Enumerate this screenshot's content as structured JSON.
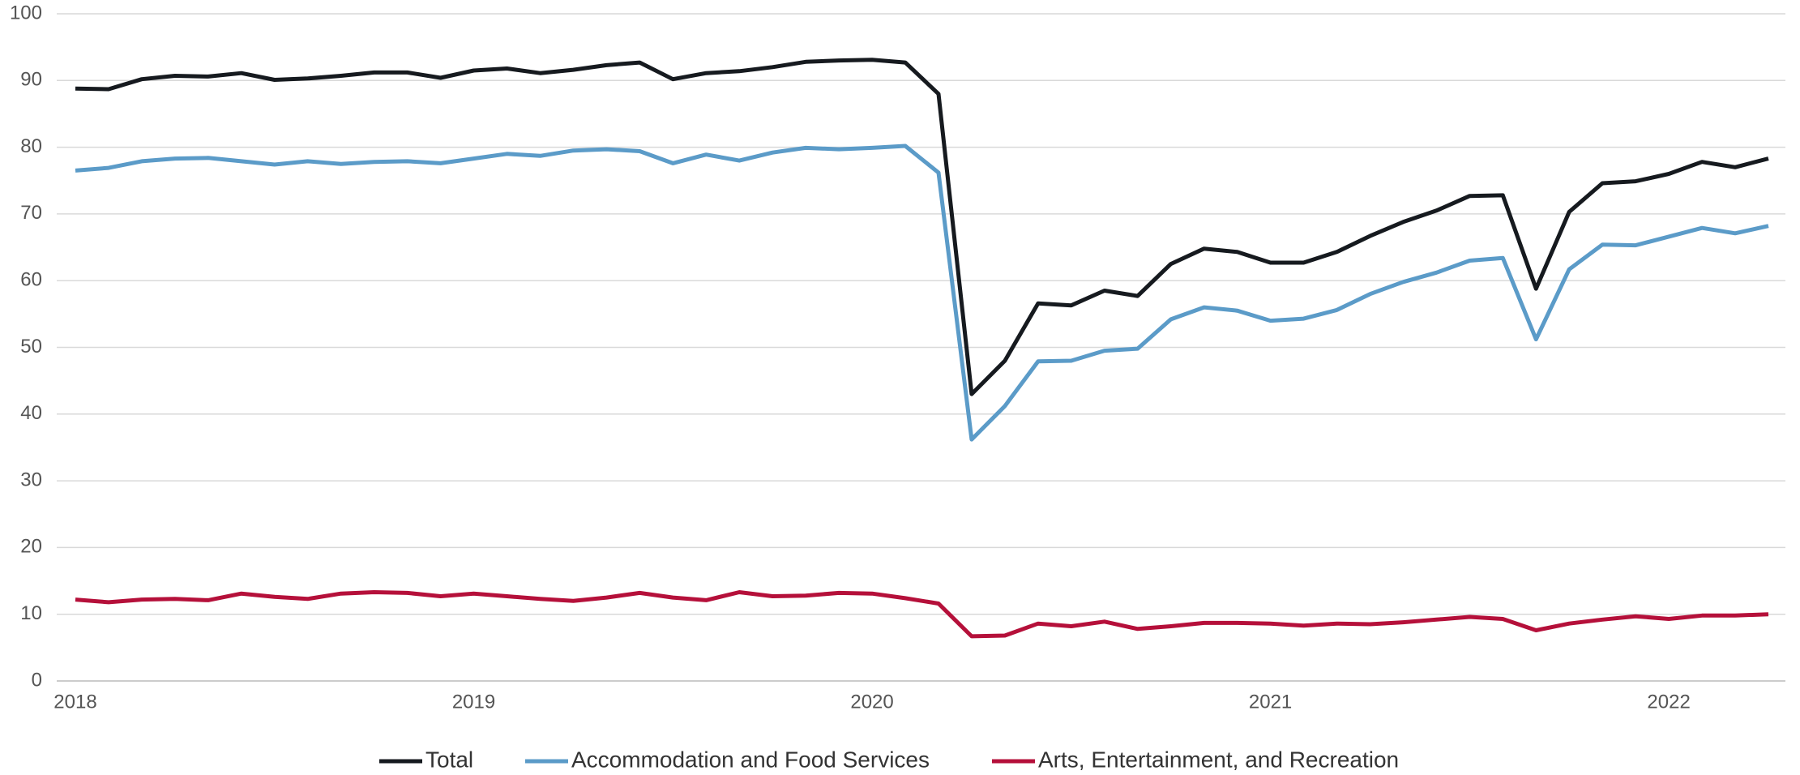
{
  "chart_data": {
    "type": "line",
    "categories": [
      "2018",
      null,
      null,
      null,
      null,
      null,
      null,
      null,
      null,
      null,
      null,
      null,
      "2019",
      null,
      null,
      null,
      null,
      null,
      null,
      null,
      null,
      null,
      null,
      null,
      "2020",
      null,
      null,
      null,
      null,
      null,
      null,
      null,
      null,
      null,
      null,
      null,
      "2021",
      null,
      null,
      null,
      null,
      null,
      null,
      null,
      null,
      null,
      null,
      null,
      "2022",
      null,
      null,
      null
    ],
    "ylim": [
      0,
      100
    ],
    "yticks": [
      0,
      10,
      20,
      30,
      40,
      50,
      60,
      70,
      80,
      90,
      100
    ],
    "grid": true,
    "legend": "bottom",
    "series": [
      {
        "name": "Total",
        "color": "#161a1f",
        "values": [
          88.8,
          88.7,
          90.2,
          90.7,
          90.6,
          91.1,
          90.1,
          90.3,
          90.7,
          91.2,
          91.2,
          90.4,
          91.5,
          91.8,
          91.1,
          91.6,
          92.3,
          92.7,
          90.2,
          91.1,
          91.4,
          92.0,
          92.8,
          93.0,
          93.1,
          92.7,
          88.0,
          43.0,
          48.0,
          56.6,
          56.3,
          58.5,
          57.7,
          62.5,
          64.8,
          64.3,
          62.7,
          62.7,
          64.3,
          66.7,
          68.8,
          70.5,
          72.7,
          72.8,
          58.8,
          70.3,
          74.6,
          74.9,
          76.0,
          77.8,
          77.0,
          78.3
        ]
      },
      {
        "name": "Accommodation and Food Services",
        "color": "#5b9bc8",
        "values": [
          76.5,
          76.9,
          77.9,
          78.3,
          78.4,
          77.9,
          77.4,
          77.9,
          77.5,
          77.8,
          77.9,
          77.6,
          78.3,
          79.0,
          78.7,
          79.5,
          79.7,
          79.4,
          77.6,
          78.9,
          78.0,
          79.2,
          79.9,
          79.7,
          79.9,
          80.2,
          76.2,
          36.2,
          41.2,
          47.9,
          48.0,
          49.5,
          49.8,
          54.2,
          56.0,
          55.5,
          54.0,
          54.3,
          55.6,
          58.0,
          59.8,
          61.2,
          63.0,
          63.4,
          51.2,
          61.7,
          65.4,
          65.3,
          66.6,
          67.9,
          67.1,
          68.2
        ]
      },
      {
        "name": "Arts, Entertainment, and Recreation",
        "color": "#b5103a",
        "values": [
          12.2,
          11.8,
          12.2,
          12.3,
          12.1,
          13.1,
          12.6,
          12.3,
          13.1,
          13.3,
          13.2,
          12.7,
          13.1,
          12.7,
          12.3,
          12.0,
          12.5,
          13.2,
          12.5,
          12.1,
          13.3,
          12.7,
          12.8,
          13.2,
          13.1,
          12.4,
          11.6,
          6.7,
          6.8,
          8.6,
          8.2,
          8.9,
          7.8,
          8.2,
          8.7,
          8.7,
          8.6,
          8.3,
          8.6,
          8.5,
          8.8,
          9.2,
          9.6,
          9.3,
          7.6,
          8.6,
          9.2,
          9.7,
          9.3,
          9.8,
          9.8,
          10.0
        ]
      }
    ]
  }
}
